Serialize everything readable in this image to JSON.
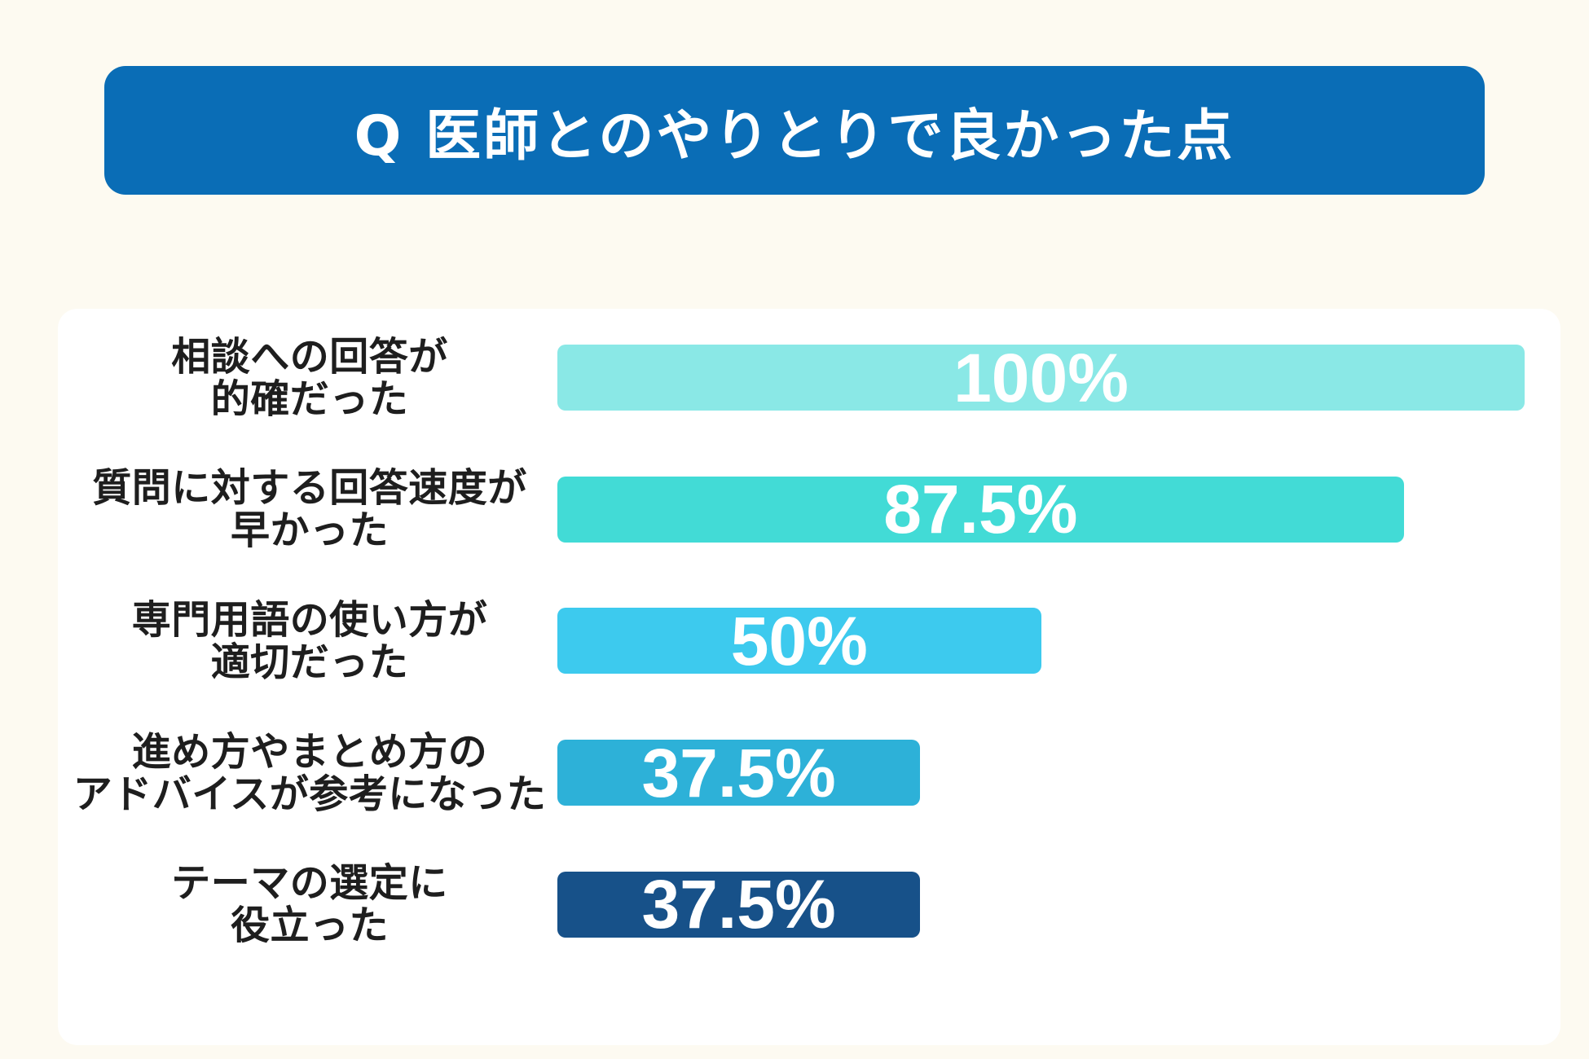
{
  "colors": {
    "background": "#fdfaf1",
    "banner": "#0a6db6",
    "panel": "#ffffff",
    "label_text": "#1e1e1e",
    "value_text": "#ffffff"
  },
  "chart_data": {
    "type": "bar",
    "orientation": "horizontal",
    "title": "Q 医師とのやりとりで良かった点",
    "categories": [
      [
        "相談への回答が",
        "的確だった"
      ],
      [
        "質問に対する回答速度が",
        "早かった"
      ],
      [
        "専門用語の使い方が",
        "適切だった"
      ],
      [
        "進め方やまとめ方の",
        "アドバイスが参考になった"
      ],
      [
        "テーマの選定に",
        "役立った"
      ]
    ],
    "values": [
      100,
      87.5,
      50,
      37.5,
      37.5
    ],
    "value_labels": [
      "100%",
      "87.5%",
      "50%",
      "37.5%",
      "37.5%"
    ],
    "bar_colors": [
      "#8ae8e6",
      "#42dbd6",
      "#3dcaee",
      "#2db1d8",
      "#175189"
    ],
    "xlim": [
      0,
      100
    ],
    "grid": false,
    "legend": "none"
  }
}
